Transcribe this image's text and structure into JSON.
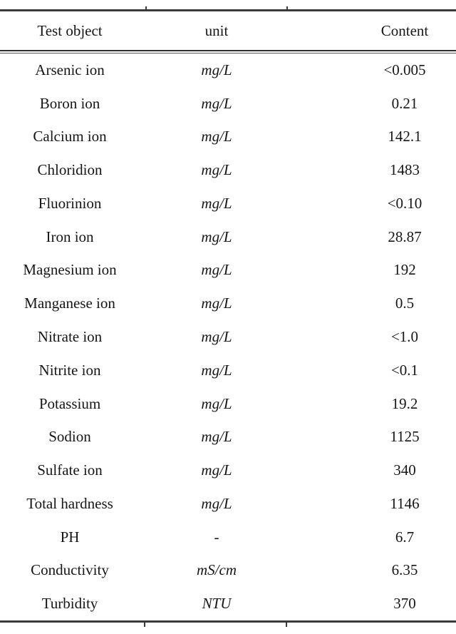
{
  "colors": {
    "background": "#ffffff",
    "text": "#161616",
    "rule": "#3a3a3a"
  },
  "table": {
    "columns": [
      {
        "label": "Test object"
      },
      {
        "label": "unit"
      },
      {
        "label": "Content"
      }
    ],
    "rows": [
      {
        "object": "Arsenic ion",
        "unit": "mg/L",
        "content": "<0.005"
      },
      {
        "object": "Boron ion",
        "unit": "mg/L",
        "content": "0.21"
      },
      {
        "object": "Calcium ion",
        "unit": "mg/L",
        "content": "142.1"
      },
      {
        "object": "Chloridion",
        "unit": "mg/L",
        "content": "1483"
      },
      {
        "object": "Fluorinion",
        "unit": "mg/L",
        "content": "<0.10"
      },
      {
        "object": "Iron ion",
        "unit": "mg/L",
        "content": "28.87"
      },
      {
        "object": "Magnesium ion",
        "unit": "mg/L",
        "content": "192"
      },
      {
        "object": "Manganese ion",
        "unit": "mg/L",
        "content": "0.5"
      },
      {
        "object": "Nitrate ion",
        "unit": "mg/L",
        "content": "<1.0"
      },
      {
        "object": "Nitrite ion",
        "unit": "mg/L",
        "content": "<0.1"
      },
      {
        "object": "Potassium",
        "unit": "mg/L",
        "content": "19.2"
      },
      {
        "object": "Sodion",
        "unit": "mg/L",
        "content": "1125"
      },
      {
        "object": "Sulfate ion",
        "unit": "mg/L",
        "content": "340"
      },
      {
        "object": "Total hardness",
        "unit": "mg/L",
        "content": "1146"
      },
      {
        "object": "PH",
        "unit": "-",
        "content": "6.7"
      },
      {
        "object": "Conductivity",
        "unit": "mS/cm",
        "content": "6.35"
      },
      {
        "object": "Turbidity",
        "unit": "NTU",
        "content": "370"
      }
    ]
  }
}
